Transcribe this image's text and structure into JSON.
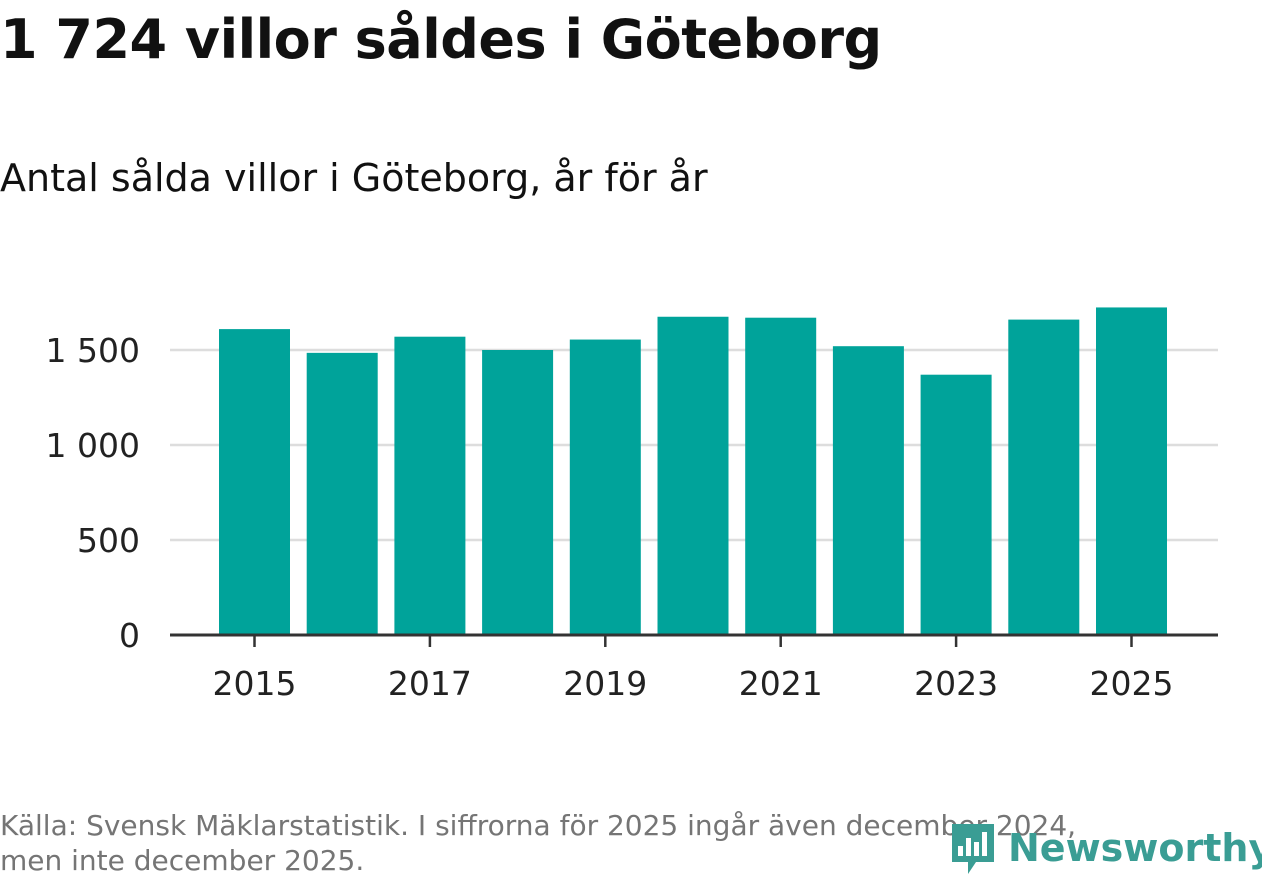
{
  "header": {
    "title": "1 724 villor såldes i Göteborg",
    "subtitle": "Antal sålda villor i Göteborg, år för år"
  },
  "footer": {
    "source_line1": "Källa: Svensk Mäklarstatistik. I siffrorna för 2025 ingår även december 2024,",
    "source_line2": "men inte december 2025."
  },
  "brand": {
    "name": "Newsworthy",
    "icon": "newsworthy-logo-icon",
    "color": "#3a9d94"
  },
  "colors": {
    "bar": "#00a39a",
    "grid": "#dddddd",
    "axis": "#333333",
    "tick_text": "#222222"
  },
  "chart_data": {
    "type": "bar",
    "title": "Antal sålda villor i Göteborg, år för år",
    "xlabel": "",
    "ylabel": "",
    "categories": [
      "2015",
      "2016",
      "2017",
      "2018",
      "2019",
      "2020",
      "2021",
      "2022",
      "2023",
      "2024",
      "2025"
    ],
    "values": [
      1610,
      1485,
      1570,
      1500,
      1555,
      1675,
      1670,
      1520,
      1370,
      1660,
      1724
    ],
    "ylim": [
      0,
      1800
    ],
    "yticks": [
      0,
      500,
      1000,
      1500
    ],
    "ytick_labels": [
      "0",
      "500",
      "1 000",
      "1 500"
    ],
    "xtick_labels": [
      "2015",
      "2017",
      "2019",
      "2021",
      "2023",
      "2025"
    ],
    "grid": true,
    "legend": "none"
  }
}
